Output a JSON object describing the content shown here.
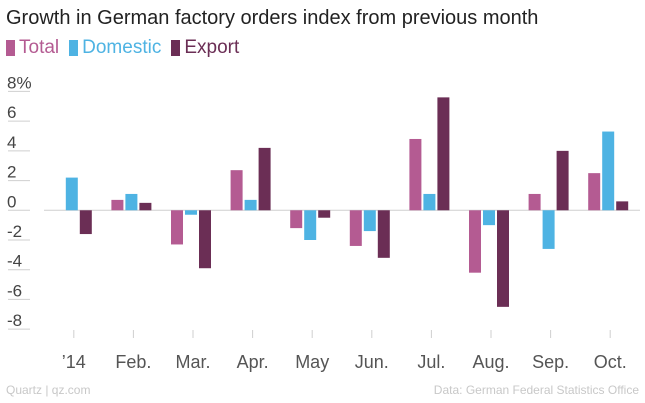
{
  "chart_data": {
    "type": "bar",
    "title": "Growth in German factory orders index from previous month",
    "categories": [
      "’14",
      "Feb.",
      "Mar.",
      "Apr.",
      "May",
      "Jun.",
      "Jul.",
      "Aug.",
      "Sep.",
      "Oct."
    ],
    "series": [
      {
        "name": "Total",
        "color": "#b45b92",
        "values": [
          0,
          0.7,
          -2.3,
          2.7,
          -1.2,
          -2.4,
          4.8,
          -4.2,
          1.1,
          2.5
        ]
      },
      {
        "name": "Domestic",
        "color": "#4eb3e3",
        "values": [
          2.2,
          1.1,
          -0.3,
          0.7,
          -2.0,
          -1.4,
          1.1,
          -1.0,
          -2.6,
          5.3
        ]
      },
      {
        "name": "Export",
        "color": "#6b2e55",
        "values": [
          -1.6,
          0.5,
          -3.9,
          4.2,
          -0.5,
          -3.2,
          7.6,
          -6.5,
          4.0,
          0.6
        ]
      }
    ],
    "ylim": [
      -9,
      8.5
    ],
    "yticks": [
      8,
      6,
      4,
      2,
      0,
      -2,
      -4,
      -6,
      -8
    ],
    "ytick_labels": [
      "8%",
      "6",
      "4",
      "2",
      "0",
      "-2",
      "-4",
      "-6",
      "-8"
    ],
    "xlabel": "",
    "ylabel": "",
    "grid": false
  },
  "footer": {
    "source_left": "Quartz | qz.com",
    "source_right": "Data: German Federal Statistics Office"
  }
}
